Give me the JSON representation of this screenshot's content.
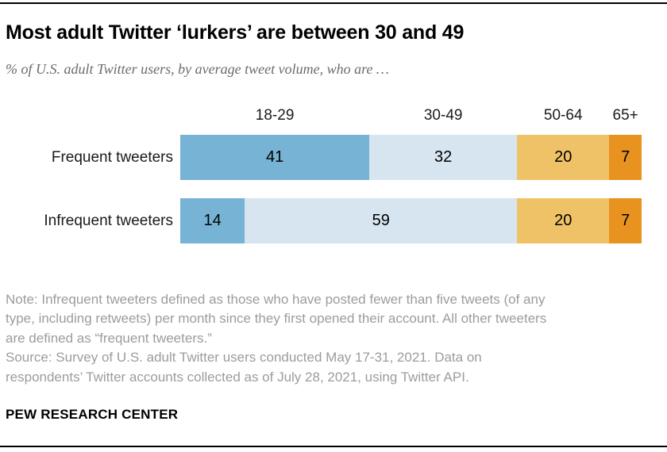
{
  "header": {
    "title": "Most adult Twitter ‘lurkers’ are between 30 and 49",
    "subtitle": "% of U.S. adult Twitter users, by average tweet volume, who are …"
  },
  "chart_data": {
    "type": "bar",
    "variant": "horizontal_stacked",
    "units": "% of U.S. adult Twitter users",
    "categories": [
      "18-29",
      "30-49",
      "50-64",
      "65+"
    ],
    "series": [
      {
        "name": "Frequent tweeters",
        "values": [
          41,
          32,
          20,
          7
        ]
      },
      {
        "name": "Infrequent tweeters",
        "values": [
          14,
          59,
          20,
          7
        ]
      }
    ],
    "segment_colors": [
      "#76b3d4",
      "#d6e5f0",
      "#f0c267",
      "#e8921f"
    ],
    "xlim": [
      0,
      100
    ],
    "grid": false,
    "value_labels": "inside-center",
    "category_labels_position": "above-first-bar"
  },
  "footer": {
    "note_lines": [
      "Note: Infrequent tweeters defined as those who have posted fewer than five tweets (of any",
      "type, including retweets) per month since they first opened their account. All other tweeters",
      "are defined as “frequent tweeters.”"
    ],
    "source_lines": [
      "Source: Survey of U.S. adult Twitter users conducted May 17-31, 2021. Data on",
      "respondents’ Twitter accounts collected as of July 28, 2021, using Twitter API."
    ],
    "brand": "PEW RESEARCH CENTER"
  },
  "style": {
    "rule_color": "#000000",
    "title_color": "#000000",
    "subtitle_color": "#6b6b6b",
    "label_color": "#1a1a1a",
    "note_color": "#9c9c9c",
    "value_label_color": "#000000"
  }
}
